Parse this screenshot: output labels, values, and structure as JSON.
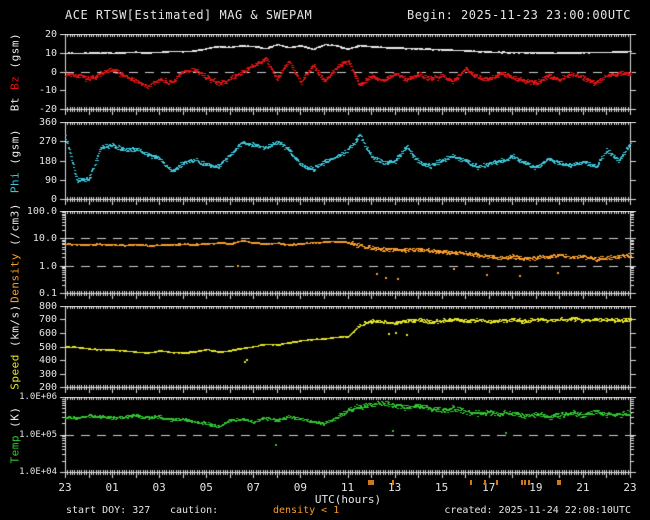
{
  "header": {
    "title": "ACE RTSW[Estimated] MAG & SWEPAM",
    "begin": "Begin: 2025-11-23 23:00:00UTC"
  },
  "footer": {
    "start_doy": "start DOY: 327",
    "caution_label": "caution:",
    "caution_value": "density < 1",
    "created": "created: 2025-11-24 22:08:10UTC"
  },
  "x_axis": {
    "label": "UTC(hours)",
    "tick_labels": [
      "23",
      "01",
      "03",
      "05",
      "07",
      "09",
      "11",
      "13",
      "15",
      "17",
      "19",
      "21",
      "23"
    ],
    "tick_hours": [
      0,
      2,
      4,
      6,
      8,
      10,
      12,
      14,
      16,
      18,
      20,
      22,
      24
    ],
    "hours_span": 24,
    "caution_hours": [
      12.85,
      12.95,
      13.05,
      13.9,
      17.2,
      17.8,
      18.3,
      19.35,
      19.5,
      19.65,
      20.9,
      21.0
    ]
  },
  "colors": {
    "background": "#000000",
    "frame": "#dcdcdc",
    "text": "#e4e4e4",
    "dash": "#cfcfcf",
    "bt": "#e8e8e8",
    "bz": "#dd1414",
    "phi": "#3cc6d8",
    "density": "#f79c27",
    "speed": "#e3e328",
    "temp": "#2fc32f",
    "caution": "#cc7722"
  },
  "chart_data": [
    {
      "id": "bt-bz",
      "type": "scatter",
      "yscale": "linear",
      "ylim": [
        -20,
        20
      ],
      "yticks": [
        {
          "v": 20,
          "label": "20"
        },
        {
          "v": 10,
          "label": "10"
        },
        {
          "v": 0,
          "label": "0"
        },
        {
          "v": -10,
          "label": "-10"
        },
        {
          "v": -20,
          "label": "-20"
        }
      ],
      "ref_lines": [
        0
      ],
      "ylabel_parts": [
        {
          "text": "Bt ",
          "color": "#e8e8e8"
        },
        {
          "text": "Bz ",
          "color": "#dd1414"
        },
        {
          "text": "(gsm)",
          "color": "#e8e8e8"
        }
      ],
      "x_start": 0,
      "x_step": 0.5,
      "series": [
        {
          "name": "Bt",
          "color": "#e8e8e8",
          "values": [
            10,
            9.8,
            10,
            10.2,
            10,
            10.3,
            10.5,
            10.2,
            10.5,
            11,
            10.8,
            11.2,
            12.5,
            13.5,
            13,
            14,
            13.5,
            12.5,
            14.5,
            13,
            14,
            12,
            14.5,
            14,
            12,
            14,
            13.5,
            13,
            12.8,
            12.5,
            12.3,
            12,
            11.8,
            11.5,
            11.2,
            10.8,
            10.5,
            10.4,
            10.3,
            10.2,
            10.2,
            10.1,
            10.1,
            10.2,
            10.3,
            10.4,
            10.5,
            10.6,
            10.8
          ],
          "render": {
            "jitter": 0.35,
            "n": 1300,
            "seed": 3
          }
        },
        {
          "name": "Bz",
          "color": "#dd1414",
          "values": [
            -1,
            -2,
            -4,
            -1,
            1,
            -2,
            -5,
            -8,
            -4,
            -6,
            0,
            1,
            -3,
            -6,
            -4,
            0,
            3,
            7,
            -4,
            6,
            -6,
            4,
            -5,
            2,
            6,
            -7,
            -2,
            -5,
            -1,
            -4,
            -1,
            -4,
            -2,
            -5,
            2,
            -3,
            -4,
            -1,
            -3,
            -5,
            -6,
            -2,
            -4,
            -1,
            -3,
            -6,
            -2,
            -1,
            -1
          ],
          "render": {
            "jitter": 1.6,
            "n": 1300,
            "seed": 7
          }
        }
      ]
    },
    {
      "id": "phi",
      "type": "scatter",
      "yscale": "linear",
      "ylim": [
        0,
        360
      ],
      "yticks": [
        {
          "v": 360,
          "label": "360"
        },
        {
          "v": 270,
          "label": "270"
        },
        {
          "v": 180,
          "label": "180"
        },
        {
          "v": 90,
          "label": "90"
        },
        {
          "v": 0,
          "label": "0"
        }
      ],
      "ref_lines": [],
      "ylabel_parts": [
        {
          "text": "Phi ",
          "color": "#3cc6d8"
        },
        {
          "text": "(gsm)",
          "color": "#e8e8e8"
        }
      ],
      "x_start": 0,
      "x_step": 0.5,
      "series": [
        {
          "name": "Phi",
          "color": "#3cc6d8",
          "values": [
            300,
            88,
            95,
            240,
            255,
            230,
            235,
            210,
            190,
            130,
            170,
            185,
            160,
            150,
            210,
            265,
            255,
            240,
            270,
            230,
            160,
            140,
            175,
            200,
            230,
            300,
            200,
            170,
            180,
            245,
            175,
            155,
            185,
            200,
            180,
            150,
            165,
            180,
            200,
            170,
            145,
            190,
            170,
            155,
            180,
            150,
            230,
            180,
            260
          ],
          "render": {
            "jitter": 12,
            "n": 1200,
            "seed": 13
          }
        }
      ]
    },
    {
      "id": "density",
      "type": "scatter",
      "yscale": "log",
      "ylim": [
        0.1,
        100
      ],
      "yticks": [
        {
          "v": 100,
          "label": "100.0"
        },
        {
          "v": 10,
          "label": "10.0"
        },
        {
          "v": 1,
          "label": "1.0"
        },
        {
          "v": 0.1,
          "label": "0.1"
        }
      ],
      "ref_lines": [
        10,
        1
      ],
      "ylabel_parts": [
        {
          "text": "Density ",
          "color": "#f79c27"
        },
        {
          "text": "(/cm3)",
          "color": "#e8e8e8"
        }
      ],
      "x_start": 0,
      "x_step": 0.5,
      "series": [
        {
          "name": "Density",
          "color": "#f79c27",
          "values": [
            6.5,
            6.2,
            6.0,
            6.3,
            6.0,
            5.8,
            6.0,
            5.5,
            5.8,
            6.0,
            6.2,
            6.0,
            6.5,
            7.0,
            6.5,
            8.5,
            7.0,
            6.5,
            6.8,
            6.0,
            6.5,
            7.0,
            7.5,
            8.0,
            7.0,
            5.5,
            4.5,
            4.0,
            4.2,
            3.8,
            4.0,
            3.5,
            3.2,
            3.0,
            2.8,
            2.5,
            2.2,
            2.0,
            2.2,
            1.8,
            2.0,
            2.2,
            2.5,
            2.0,
            2.2,
            1.8,
            2.0,
            2.2,
            2.5
          ],
          "outliers": [
            [
              7.3,
              1.1
            ],
            [
              13.2,
              0.55
            ],
            [
              13.6,
              0.4
            ],
            [
              14.1,
              0.35
            ],
            [
              16.5,
              0.8
            ],
            [
              17.9,
              0.5
            ],
            [
              19.3,
              0.45
            ],
            [
              20.9,
              0.6
            ]
          ],
          "render": {
            "jitter_dex": 0.035,
            "jitter2_dex": 0.09,
            "jitter2_from": 12,
            "n": 1200,
            "seed": 17
          }
        }
      ]
    },
    {
      "id": "speed",
      "type": "scatter",
      "yscale": "linear",
      "ylim": [
        200,
        800
      ],
      "yticks": [
        {
          "v": 800,
          "label": "800"
        },
        {
          "v": 700,
          "label": "700"
        },
        {
          "v": 600,
          "label": "600"
        },
        {
          "v": 500,
          "label": "500"
        },
        {
          "v": 400,
          "label": "400"
        },
        {
          "v": 300,
          "label": "300"
        },
        {
          "v": 200,
          "label": "200"
        }
      ],
      "ref_lines": [],
      "ylabel_parts": [
        {
          "text": "Speed ",
          "color": "#e3e328"
        },
        {
          "text": "(km/s)",
          "color": "#e8e8e8"
        }
      ],
      "x_start": 0,
      "x_step": 0.5,
      "series": [
        {
          "name": "Speed",
          "color": "#e3e328",
          "values": [
            500,
            495,
            485,
            480,
            478,
            470,
            462,
            455,
            470,
            460,
            455,
            465,
            480,
            462,
            470,
            490,
            500,
            520,
            515,
            530,
            545,
            555,
            560,
            570,
            575,
            660,
            690,
            685,
            680,
            690,
            700,
            685,
            695,
            705,
            690,
            700,
            685,
            695,
            700,
            690,
            705,
            695,
            700,
            710,
            695,
            700,
            705,
            695,
            700
          ],
          "outliers": [
            [
              7.6,
              395
            ],
            [
              7.7,
              410
            ],
            [
              13.7,
              600
            ],
            [
              14.0,
              610
            ],
            [
              14.5,
              590
            ]
          ],
          "render": {
            "jitter": 5,
            "jitter2": 16,
            "jitter2_from": 12.4,
            "n": 1200,
            "seed": 23
          }
        }
      ]
    },
    {
      "id": "temp",
      "type": "scatter",
      "yscale": "log",
      "ylim": [
        10000,
        1000000
      ],
      "yticks": [
        {
          "v": 1000000,
          "label": "1.0E+06"
        },
        {
          "v": 100000,
          "label": "1.0E+05"
        },
        {
          "v": 10000,
          "label": "1.0E+04"
        }
      ],
      "ref_lines": [
        100000
      ],
      "ylabel_parts": [
        {
          "text": "Temp ",
          "color": "#2fc32f"
        },
        {
          "text": "(K)",
          "color": "#e8e8e8"
        }
      ],
      "x_start": 0,
      "x_step": 0.5,
      "series": [
        {
          "name": "Temp",
          "color": "#2fc32f",
          "values": [
            300000,
            280000,
            320000,
            300000,
            280000,
            300000,
            330000,
            280000,
            300000,
            250000,
            260000,
            220000,
            200000,
            160000,
            240000,
            260000,
            220000,
            280000,
            240000,
            300000,
            260000,
            220000,
            200000,
            280000,
            450000,
            550000,
            650000,
            700000,
            600000,
            550000,
            580000,
            500000,
            450000,
            500000,
            420000,
            380000,
            400000,
            350000,
            380000,
            320000,
            350000,
            300000,
            340000,
            380000,
            320000,
            400000,
            360000,
            340000,
            380000
          ],
          "outliers": [
            [
              8.9,
              55000
            ],
            [
              13.9,
              130000
            ],
            [
              18.7,
              120000
            ]
          ],
          "render": {
            "jitter_dex": 0.05,
            "jitter2_dex": 0.09,
            "jitter2_from": 11.5,
            "n": 1200,
            "seed": 29
          }
        }
      ]
    }
  ]
}
